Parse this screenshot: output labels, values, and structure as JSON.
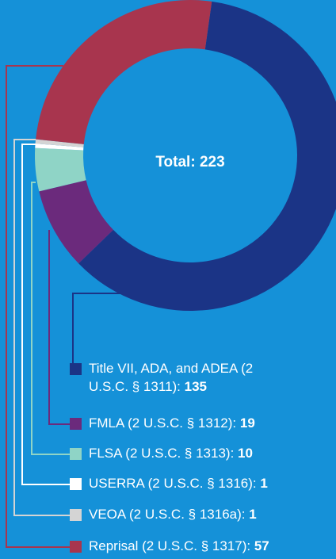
{
  "chart_data": {
    "type": "donut",
    "center_label": "Total:",
    "total": 223,
    "categories": [
      "Title VII, ADA, and ADEA (2 U.S.C. § 1311):",
      "FMLA (2 U.S.C. § 1312):",
      "FLSA (2 U.S.C. § 1313):",
      "USERRA (2 U.S.C. § 1316):",
      "VEOA (2 U.S.C. § 1316a):",
      "Reprisal (2 U.S.C. § 1317):"
    ],
    "values": [
      135,
      19,
      10,
      1,
      1,
      57
    ],
    "colors": [
      "#1b3486",
      "#6b2a7c",
      "#8fd4c6",
      "#ffffff",
      "#d4d4d4",
      "#a8354e"
    ]
  }
}
